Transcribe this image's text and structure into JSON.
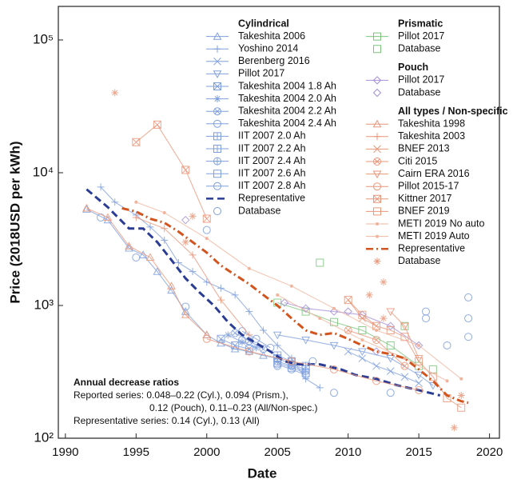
{
  "chart_data": {
    "type": "line",
    "xlabel": "Date",
    "ylabel": "Price (2018USD per kWh)",
    "xlim": [
      1989.5,
      2020.7
    ],
    "xticks": [
      1990,
      1995,
      2000,
      2005,
      2010,
      2015,
      2020
    ],
    "ylim": [
      100,
      179000
    ],
    "log_y": true,
    "yticks": [
      {
        "value": 100,
        "label": "10²"
      },
      {
        "value": 1000,
        "label": "10³"
      },
      {
        "value": 10000,
        "label": "10⁴"
      },
      {
        "value": 100000,
        "label": "10⁵"
      }
    ],
    "legend_groups": [
      "Cylindrical",
      "Prismatic",
      "Pouch",
      "All types / Non-specific"
    ],
    "series": [
      {
        "name": "Takeshita 2006",
        "group": 0,
        "color": "#7f9fdc",
        "marker": "triangle",
        "line": true,
        "x": [
          1991.5,
          1993,
          1994.5,
          1995.5,
          1996.5,
          1997.5,
          1998.5,
          2000,
          2001,
          2002,
          2003,
          2004,
          2005
        ],
        "values": [
          5300,
          4400,
          2700,
          2400,
          1800,
          1300,
          900,
          600,
          520,
          470,
          450,
          420,
          400
        ]
      },
      {
        "name": "Yoshino 2014",
        "group": 0,
        "color": "#7f9fdc",
        "marker": "plus",
        "line": true,
        "x": [
          1992.5,
          1993.5,
          1995,
          1996,
          1997,
          1998,
          1999,
          2000,
          2001,
          2002,
          2003,
          2004,
          2005,
          2006,
          2007,
          2008
        ],
        "values": [
          7800,
          6000,
          4800,
          3900,
          3100,
          2100,
          1800,
          1500,
          1350,
          1200,
          900,
          650,
          500,
          400,
          280,
          240
        ]
      },
      {
        "name": "Berenberg 2016",
        "group": 0,
        "color": "#7f9fdc",
        "marker": "x",
        "line": true,
        "x": [
          2010,
          2011,
          2012,
          2013,
          2014,
          2015
        ],
        "values": [
          450,
          400,
          350,
          320,
          290,
          260
        ]
      },
      {
        "name": "Pillot 2017",
        "group": 0,
        "color": "#7f9fdc",
        "marker": "tridown",
        "line": true,
        "x": [
          2005,
          2007,
          2009,
          2011,
          2013,
          2015,
          2016
        ],
        "values": [
          600,
          550,
          500,
          450,
          400,
          300,
          250
        ]
      },
      {
        "name": "Takeshita 2004 1.8 Ah",
        "group": 0,
        "color": "#7f9fdc",
        "marker": "squarex",
        "line": true,
        "x": [
          2001,
          2002,
          2003
        ],
        "values": [
          560,
          500,
          470
        ]
      },
      {
        "name": "Takeshita 2004 2.0 Ah",
        "group": 0,
        "color": "#7f9fdc",
        "marker": "star",
        "line": true,
        "x": [
          2001.5,
          2002.5,
          2003.5
        ],
        "values": [
          600,
          530,
          480
        ]
      },
      {
        "name": "Takeshita 2004 2.2 Ah",
        "group": 0,
        "color": "#7f9fdc",
        "marker": "circlex",
        "line": true,
        "x": [
          2002,
          2003,
          2004
        ],
        "values": [
          620,
          540,
          470
        ]
      },
      {
        "name": "Takeshita 2004 2.4 Ah",
        "group": 0,
        "color": "#7f9fdc",
        "marker": "circle",
        "line": true,
        "x": [
          2002.5,
          2003.5,
          2004.5
        ],
        "values": [
          640,
          560,
          480
        ]
      },
      {
        "name": "IIT 2007 2.0 Ah",
        "group": 0,
        "color": "#7f9fdc",
        "marker": "squareplus",
        "line": true,
        "x": [
          2005,
          2006,
          2007
        ],
        "values": [
          420,
          380,
          350
        ]
      },
      {
        "name": "IIT 2007 2.2 Ah",
        "group": 0,
        "color": "#7f9fdc",
        "marker": "squareplus",
        "line": true,
        "x": [
          2005,
          2006,
          2007
        ],
        "values": [
          400,
          360,
          330
        ]
      },
      {
        "name": "IIT 2007 2.4 Ah",
        "group": 0,
        "color": "#7f9fdc",
        "marker": "circleplus",
        "line": true,
        "x": [
          2005,
          2006,
          2007
        ],
        "values": [
          380,
          350,
          320
        ]
      },
      {
        "name": "IIT 2007 2.6 Ah",
        "group": 0,
        "color": "#7f9fdc",
        "marker": "square",
        "line": true,
        "x": [
          2005,
          2006,
          2007
        ],
        "values": [
          370,
          340,
          310
        ]
      },
      {
        "name": "IIT 2007 2.8 Ah",
        "group": 0,
        "color": "#7f9fdc",
        "marker": "circle",
        "line": true,
        "x": [
          2005,
          2006,
          2007
        ],
        "values": [
          360,
          330,
          300
        ]
      },
      {
        "name": "Representative",
        "group": 0,
        "color": "#2a3c94",
        "marker": "none",
        "line": true,
        "dash": "dashed",
        "x": [
          1991.5,
          1993,
          1994.5,
          1995.5,
          1996.5,
          1997.5,
          1998.5,
          1999.5,
          2000.5,
          2001.5,
          2002.5,
          2003.5,
          2004.5,
          2005.5,
          2006.5,
          2008,
          2009.5,
          2010.5,
          2012,
          2013.5,
          2015,
          2016.5
        ],
        "values": [
          7500,
          5500,
          3800,
          3800,
          3000,
          2200,
          1600,
          1250,
          1000,
          750,
          600,
          520,
          450,
          380,
          360,
          360,
          330,
          300,
          280,
          250,
          230,
          210
        ]
      },
      {
        "name": "Database",
        "group": 0,
        "color": "#7f9fdc",
        "marker": "circle",
        "line": false,
        "x": [
          1992.5,
          1995,
          1998.5,
          2000,
          2002.5,
          2005,
          2006,
          2007.5,
          2009,
          2013,
          2015.5,
          2015.5,
          2017,
          2018.5,
          2018.5,
          2018.5
        ],
        "values": [
          4600,
          2300,
          980,
          3700,
          550,
          350,
          380,
          380,
          220,
          220,
          900,
          800,
          500,
          1150,
          800,
          580
        ]
      },
      {
        "name": "Pillot 2017",
        "group": 1,
        "color": "#7cc47c",
        "marker": "square",
        "line": true,
        "x": [
          2005,
          2007,
          2009,
          2011,
          2013,
          2015
        ],
        "values": [
          1050,
          900,
          750,
          650,
          500,
          350
        ]
      },
      {
        "name": "Database",
        "group": 1,
        "color": "#7cc47c",
        "marker": "square",
        "line": false,
        "x": [
          2008,
          2014,
          2016
        ],
        "values": [
          2100,
          700,
          330
        ]
      },
      {
        "name": "Pillot 2017",
        "group": 2,
        "color": "#a48fd6",
        "marker": "diamond",
        "line": true,
        "x": [
          2005.5,
          2007,
          2009,
          2011,
          2013,
          2015
        ],
        "values": [
          1050,
          950,
          900,
          850,
          700,
          500
        ]
      },
      {
        "name": "Database",
        "group": 2,
        "color": "#a48fd6",
        "marker": "diamond",
        "line": false,
        "x": [
          1998.5,
          2010,
          2012
        ],
        "values": [
          4400,
          900,
          450
        ]
      },
      {
        "name": "Takeshita 1998",
        "group": 3,
        "color": "#e9967a",
        "marker": "triangle",
        "line": true,
        "x": [
          1991.5,
          1993,
          1994.5,
          1996,
          1997.5,
          1998.5,
          2000
        ],
        "values": [
          5400,
          4600,
          2800,
          2300,
          1400,
          850,
          600
        ]
      },
      {
        "name": "Takeshita 2003",
        "group": 3,
        "color": "#e9967a",
        "marker": "plus",
        "line": true,
        "x": [
          1995,
          1997,
          1999,
          2001,
          2003
        ],
        "values": [
          4600,
          3800,
          2400,
          1100,
          600
        ]
      },
      {
        "name": "BNEF 2013",
        "group": 3,
        "color": "#e9967a",
        "marker": "x",
        "line": true,
        "x": [
          2010,
          2011,
          2012
        ],
        "values": [
          1100,
          800,
          700
        ]
      },
      {
        "name": "Citi 2015",
        "group": 3,
        "color": "#e9967a",
        "marker": "circlex",
        "line": true,
        "x": [
          2010,
          2012,
          2014
        ],
        "values": [
          650,
          550,
          350
        ]
      },
      {
        "name": "Cairn ERA 2016",
        "group": 3,
        "color": "#e9967a",
        "marker": "tridown",
        "line": true,
        "x": [
          2013,
          2014,
          2015
        ],
        "values": [
          900,
          700,
          400
        ]
      },
      {
        "name": "Pillot 2015-17",
        "group": 3,
        "color": "#e9967a",
        "marker": "circle",
        "line": true,
        "x": [
          2000,
          2003,
          2006,
          2009,
          2012,
          2015
        ],
        "values": [
          560,
          450,
          380,
          330,
          270,
          230
        ]
      },
      {
        "name": "Kittner 2017",
        "group": 3,
        "color": "#e9967a",
        "marker": "squarex",
        "line": true,
        "x": [
          1995,
          1996.5,
          1998.5,
          2000
        ],
        "values": [
          17000,
          23000,
          10500,
          4500
        ]
      },
      {
        "name": "BNEF 2019",
        "group": 3,
        "color": "#e9967a",
        "marker": "square",
        "line": true,
        "x": [
          2010,
          2011,
          2012,
          2013,
          2014,
          2015,
          2016,
          2017,
          2018
        ],
        "values": [
          1100,
          850,
          700,
          650,
          580,
          380,
          290,
          200,
          170
        ]
      },
      {
        "name": "METI 2019 No auto",
        "group": 3,
        "color": "#f0b49c",
        "marker": "dot",
        "line": true,
        "x": [
          1995,
          1997,
          2000,
          2003,
          2006,
          2009,
          2012,
          2015,
          2018
        ],
        "values": [
          6000,
          5000,
          3200,
          1900,
          1400,
          950,
          650,
          500,
          280
        ]
      },
      {
        "name": "METI 2019 Auto",
        "group": 3,
        "color": "#f0b49c",
        "marker": "dot",
        "line": true,
        "x": [
          2005,
          2008,
          2011,
          2014,
          2017
        ],
        "values": [
          1200,
          800,
          550,
          400,
          270
        ]
      },
      {
        "name": "Representative",
        "group": 3,
        "color": "#d2541e",
        "marker": "none",
        "line": true,
        "dash": "dashdot",
        "x": [
          1994,
          1995,
          1996,
          1997,
          1998,
          1999,
          2000,
          2001,
          2002,
          2003,
          2004,
          2005,
          2006,
          2007,
          2008,
          2009,
          2010,
          2011,
          2012,
          2013,
          2014,
          2015,
          2016,
          2017,
          2018,
          2018.5
        ],
        "values": [
          5400,
          5100,
          4500,
          4200,
          3600,
          3000,
          2500,
          2000,
          1700,
          1450,
          1200,
          1000,
          800,
          650,
          600,
          620,
          560,
          500,
          450,
          430,
          400,
          330,
          270,
          210,
          190,
          185
        ]
      },
      {
        "name": "Database",
        "group": 3,
        "color": "#e9967a",
        "marker": "star",
        "line": false,
        "x": [
          1993.5,
          1998.5,
          1999,
          2011.5,
          2012.5,
          2012.5,
          2017.5,
          2018
        ],
        "values": [
          40000,
          3000,
          4700,
          1200,
          1500,
          800,
          120,
          210
        ]
      }
    ],
    "annotation_lines": [
      "Annual decrease ratios",
      "Reported series: 0.048–0.22 (Cyl.), 0.094 (Prism.),",
      "0.12 (Pouch), 0.11–0.23 (All/Non-spec.)",
      "Representative series: 0.14 (Cyl.), 0.13 (All)"
    ]
  }
}
